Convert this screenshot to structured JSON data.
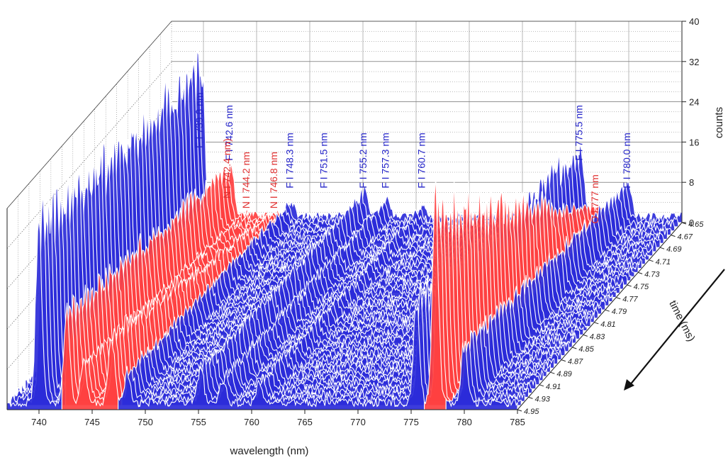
{
  "chart_data": {
    "type": "waterfall",
    "xlabel": "wavelength (nm)",
    "ylabel": "counts",
    "zlabel": "time (ms)",
    "xlim": [
      737,
      785
    ],
    "ylim": [
      0,
      40
    ],
    "x_ticks": [
      "740",
      "745",
      "750",
      "755",
      "760",
      "765",
      "770",
      "775",
      "780",
      "785"
    ],
    "y_ticks": [
      "0",
      "8",
      "16",
      "24",
      "32",
      "40"
    ],
    "time_ticks": [
      "4.65",
      "4.67",
      "4.69",
      "4.71",
      "4.73",
      "4.75",
      "4.77",
      "4.79",
      "4.81",
      "4.83",
      "4.85",
      "4.87",
      "4.89",
      "4.91",
      "4.93",
      "4.95"
    ],
    "time_range": [
      4.65,
      4.95
    ],
    "colors": {
      "default": "#2b2bd9",
      "highlight": "#ff4040",
      "annotation_blue": "#2323c8",
      "annotation_red": "#e03030"
    },
    "highlight_bands": [
      [
        742.1,
        747.4
      ],
      [
        776.2,
        778.2
      ]
    ],
    "peaks": [
      {
        "center": 739.8,
        "color": "blue",
        "label": "F I 739.8 nm"
      },
      {
        "center": 742.6,
        "color": "blue",
        "label": "F I 742.6 nm"
      },
      {
        "center": 742.4,
        "color": "red",
        "label": "N I 742.4 nm)"
      },
      {
        "center": 744.2,
        "color": "red",
        "label": "N I 744.2 nm"
      },
      {
        "center": 746.8,
        "color": "red",
        "label": "N I 746.8 nm"
      },
      {
        "center": 748.3,
        "color": "blue",
        "label": "F I 748.3 nm"
      },
      {
        "center": 751.5,
        "color": "blue",
        "label": "F I 751.5 nm"
      },
      {
        "center": 755.2,
        "color": "blue",
        "label": "F I 755.2 nm"
      },
      {
        "center": 757.3,
        "color": "blue",
        "label": "F I 757.3 nm"
      },
      {
        "center": 760.7,
        "color": "blue",
        "label": "F I 760.7 nm"
      },
      {
        "center": 775.5,
        "color": "blue",
        "label": "F I 775.5 nm"
      },
      {
        "center": 777,
        "color": "red",
        "label": "O I 777 nm"
      },
      {
        "center": 780,
        "color": "blue",
        "label": "F I 780.0 nm"
      }
    ],
    "back_spectrum_peaks": [
      {
        "center": 739.8,
        "height": 31
      },
      {
        "center": 742.6,
        "height": 10
      },
      {
        "center": 748.3,
        "height": 3
      },
      {
        "center": 755.2,
        "height": 5
      },
      {
        "center": 757.3,
        "height": 3.5
      },
      {
        "center": 760.7,
        "height": 2
      },
      {
        "center": 775.5,
        "height": 14
      },
      {
        "center": 777,
        "height": 1.5
      },
      {
        "center": 780,
        "height": 7
      }
    ],
    "front_spectrum_peaks": [
      {
        "center": 740.0,
        "height": 37
      },
      {
        "center": 742.6,
        "height": 18
      },
      {
        "center": 744.2,
        "height": 8
      },
      {
        "center": 746.8,
        "height": 14
      },
      {
        "center": 748.3,
        "height": 6
      },
      {
        "center": 755.2,
        "height": 7
      },
      {
        "center": 757.3,
        "height": 5
      },
      {
        "center": 760.7,
        "height": 4
      },
      {
        "center": 775.5,
        "height": 20
      },
      {
        "center": 777.3,
        "height": 40
      },
      {
        "center": 780,
        "height": 12
      }
    ],
    "grid": true
  }
}
